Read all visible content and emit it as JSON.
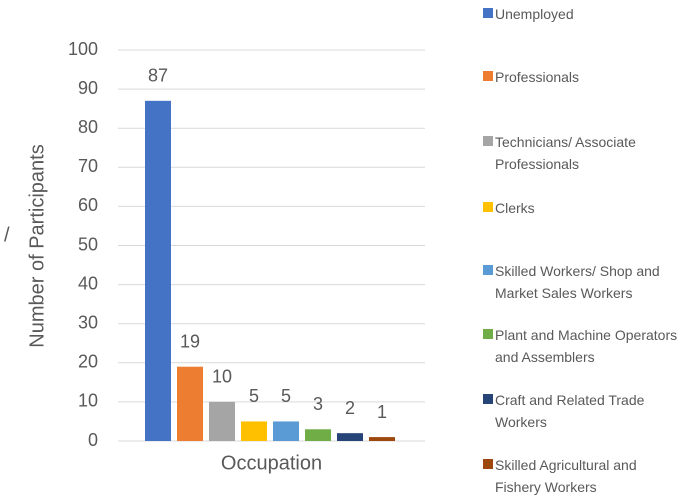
{
  "chart_data": {
    "type": "bar",
    "categories": [
      "Occupation"
    ],
    "ylabel": "Number of Participants",
    "annotation": "/",
    "series": [
      {
        "name": "Unemployed",
        "color": "#4472c4",
        "values": [
          87
        ]
      },
      {
        "name": "Professionals",
        "color": "#ed7d31",
        "values": [
          19
        ]
      },
      {
        "name": "Technicians/ Associate Professionals",
        "color": "#a5a5a5",
        "values": [
          10
        ]
      },
      {
        "name": "Clerks",
        "color": "#ffc000",
        "values": [
          5
        ]
      },
      {
        "name": "Skilled Workers/ Shop and Market Sales Workers",
        "color": "#5b9bd5",
        "values": [
          5
        ]
      },
      {
        "name": "Plant and Machine Operators and Assemblers",
        "color": "#70ad47",
        "values": [
          3
        ]
      },
      {
        "name": "Craft and Related Trade Workers",
        "color": "#264478",
        "values": [
          2
        ]
      },
      {
        "name": "Skilled Agricultural and Fishery Workers",
        "color": "#9e480e",
        "values": [
          1
        ]
      }
    ],
    "ylim": [
      0,
      100
    ],
    "yticks": [
      0,
      10,
      20,
      30,
      40,
      50,
      60,
      70,
      80,
      90,
      100
    ],
    "grid": true,
    "legend": "right"
  }
}
